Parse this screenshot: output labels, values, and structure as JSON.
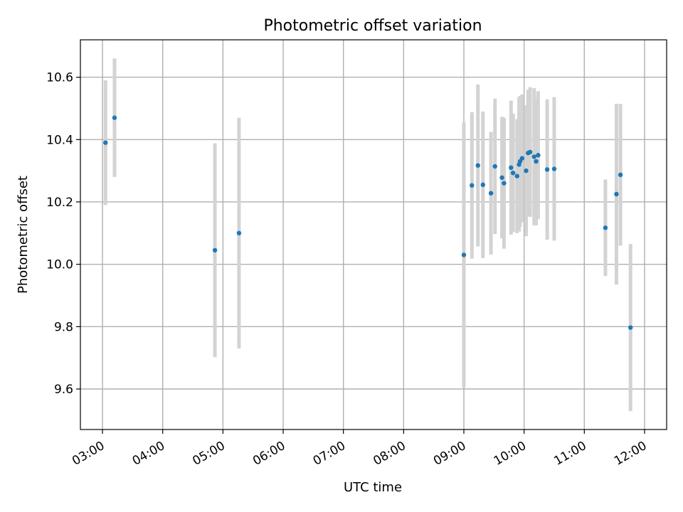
{
  "chart_data": {
    "type": "scatter",
    "title": "Photometric offset variation",
    "xlabel": "UTC time",
    "ylabel": "Photometric offset",
    "x_unit": "hours UTC",
    "xlim": [
      "02:38",
      "12:22"
    ],
    "ylim": [
      9.47,
      10.72
    ],
    "x_ticks": [
      "03:00",
      "04:00",
      "05:00",
      "06:00",
      "07:00",
      "08:00",
      "09:00",
      "10:00",
      "11:00",
      "12:00"
    ],
    "y_ticks": [
      "9.6",
      "9.8",
      "10.0",
      "10.2",
      "10.4",
      "10.6"
    ],
    "grid": true,
    "marker_color": "#1f77b4",
    "errorbar_color": "#d3d3d3",
    "points": [
      {
        "time": "03:03",
        "y": 10.39,
        "err": 0.2
      },
      {
        "time": "03:12",
        "y": 10.47,
        "err": 0.19
      },
      {
        "time": "04:52",
        "y": 10.045,
        "err": 0.343
      },
      {
        "time": "05:16",
        "y": 10.1,
        "err": 0.37
      },
      {
        "time": "09:00",
        "y": 10.03,
        "err": 0.425
      },
      {
        "time": "09:08",
        "y": 10.253,
        "err": 0.235
      },
      {
        "time": "09:14",
        "y": 10.317,
        "err": 0.26
      },
      {
        "time": "09:19",
        "y": 10.255,
        "err": 0.235
      },
      {
        "time": "09:27",
        "y": 10.228,
        "err": 0.197
      },
      {
        "time": "09:31",
        "y": 10.314,
        "err": 0.217
      },
      {
        "time": "09:38",
        "y": 10.278,
        "err": 0.195
      },
      {
        "time": "09:40",
        "y": 10.26,
        "err": 0.21
      },
      {
        "time": "09:47",
        "y": 10.31,
        "err": 0.215
      },
      {
        "time": "09:49",
        "y": 10.293,
        "err": 0.19
      },
      {
        "time": "09:53",
        "y": 10.283,
        "err": 0.183
      },
      {
        "time": "09:55",
        "y": 10.32,
        "err": 0.215
      },
      {
        "time": "09:56",
        "y": 10.33,
        "err": 0.21
      },
      {
        "time": "09:58",
        "y": 10.34,
        "err": 0.205
      },
      {
        "time": "10:02",
        "y": 10.3,
        "err": 0.21
      },
      {
        "time": "10:04",
        "y": 10.357,
        "err": 0.203
      },
      {
        "time": "10:06",
        "y": 10.36,
        "err": 0.208
      },
      {
        "time": "10:10",
        "y": 10.345,
        "err": 0.22
      },
      {
        "time": "10:12",
        "y": 10.33,
        "err": 0.205
      },
      {
        "time": "10:14",
        "y": 10.35,
        "err": 0.205
      },
      {
        "time": "10:23",
        "y": 10.304,
        "err": 0.225
      },
      {
        "time": "10:30",
        "y": 10.306,
        "err": 0.23
      },
      {
        "time": "11:21",
        "y": 10.117,
        "err": 0.155
      },
      {
        "time": "11:32",
        "y": 10.225,
        "err": 0.29
      },
      {
        "time": "11:36",
        "y": 10.287,
        "err": 0.227
      },
      {
        "time": "11:46",
        "y": 9.797,
        "err": 0.268
      }
    ]
  }
}
